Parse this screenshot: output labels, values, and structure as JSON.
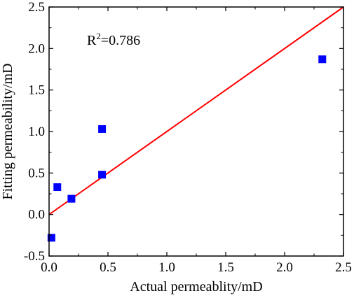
{
  "chart_data": {
    "type": "scatter",
    "xlabel": "Actual permeablity/mD",
    "ylabel": "Fitting permeability/mD",
    "xlim": [
      0,
      2.5
    ],
    "ylim": [
      -0.5,
      2.5
    ],
    "xticks": [
      "0.0",
      "0.5",
      "1.0",
      "1.5",
      "2.0",
      "2.5"
    ],
    "yticks": [
      "-0.5",
      "0.0",
      "0.5",
      "1.0",
      "1.5",
      "2.0",
      "2.5"
    ],
    "annotation": {
      "prefix": "R",
      "sup": "2",
      "suffix": "=0.786"
    },
    "grid": false,
    "series": [
      {
        "marker": "square",
        "color": "#0000ff",
        "points": [
          {
            "x": 0.02,
            "y": -0.28
          },
          {
            "x": 0.07,
            "y": 0.33
          },
          {
            "x": 0.19,
            "y": 0.19
          },
          {
            "x": 0.45,
            "y": 0.48
          },
          {
            "x": 0.45,
            "y": 1.03
          },
          {
            "x": 2.32,
            "y": 1.87
          }
        ]
      }
    ],
    "reference_line": {
      "color": "#ff0000",
      "from": [
        0,
        0
      ],
      "to": [
        2.5,
        2.5
      ]
    }
  }
}
